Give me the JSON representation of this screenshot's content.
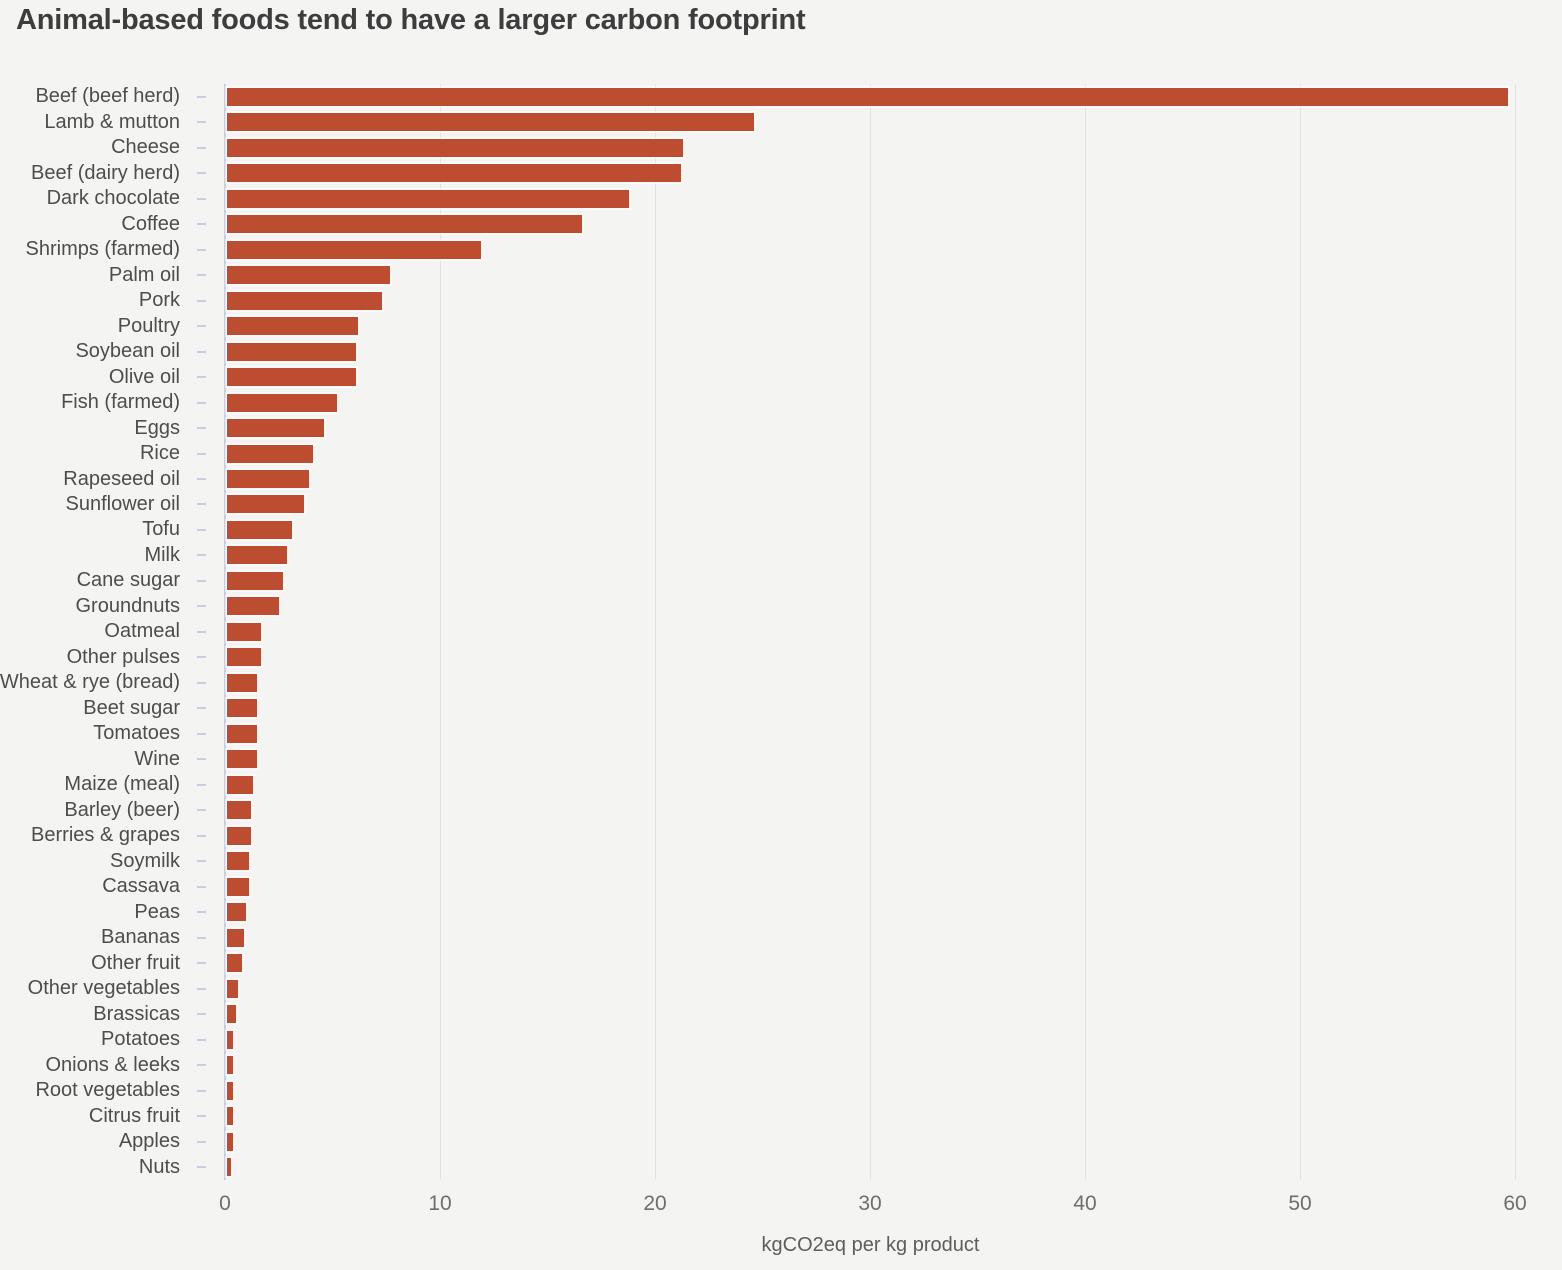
{
  "chart_data": {
    "type": "bar",
    "orientation": "horizontal",
    "title": "Animal-based foods tend to have a larger carbon footprint",
    "xlabel": "kgCO2eq per kg product",
    "ylabel": "",
    "xlim": [
      0,
      60
    ],
    "xticks": [
      0,
      10,
      20,
      30,
      40,
      50,
      60
    ],
    "grid": true,
    "legend": "none",
    "categories": [
      "Beef (beef herd)",
      "Lamb & mutton",
      "Cheese",
      "Beef (dairy herd)",
      "Dark chocolate",
      "Coffee",
      "Shrimps (farmed)",
      "Palm oil",
      "Pork",
      "Poultry",
      "Soybean oil",
      "Olive oil",
      "Fish (farmed)",
      "Eggs",
      "Rice",
      "Rapeseed oil",
      "Sunflower oil",
      "Tofu",
      "Milk",
      "Cane sugar",
      "Groundnuts",
      "Oatmeal",
      "Other pulses",
      "Wheat & rye (bread)",
      "Beet sugar",
      "Tomatoes",
      "Wine",
      "Maize (meal)",
      "Barley (beer)",
      "Berries & grapes",
      "Soymilk",
      "Cassava",
      "Peas",
      "Bananas",
      "Other fruit",
      "Other vegetables",
      "Brassicas",
      "Potatoes",
      "Onions & leeks",
      "Root vegetables",
      "Citrus fruit",
      "Apples",
      "Nuts"
    ],
    "values": [
      59.6,
      24.5,
      21.2,
      21.1,
      18.7,
      16.5,
      11.8,
      7.6,
      7.2,
      6.1,
      6.0,
      6.0,
      5.1,
      4.5,
      4.0,
      3.8,
      3.6,
      3.0,
      2.8,
      2.6,
      2.4,
      1.6,
      1.6,
      1.4,
      1.4,
      1.4,
      1.4,
      1.2,
      1.1,
      1.1,
      1.0,
      1.0,
      0.9,
      0.8,
      0.7,
      0.5,
      0.4,
      0.3,
      0.3,
      0.3,
      0.3,
      0.3,
      0.2
    ]
  },
  "colors": {
    "bar": "#bc4d31",
    "background": "#f4f4f3",
    "grid": "#e2e2e1",
    "axis": "#c9cde4",
    "title_text": "#3d3d3d",
    "category_text": "#4d4d4d",
    "tick_text": "#6e6e6e"
  }
}
